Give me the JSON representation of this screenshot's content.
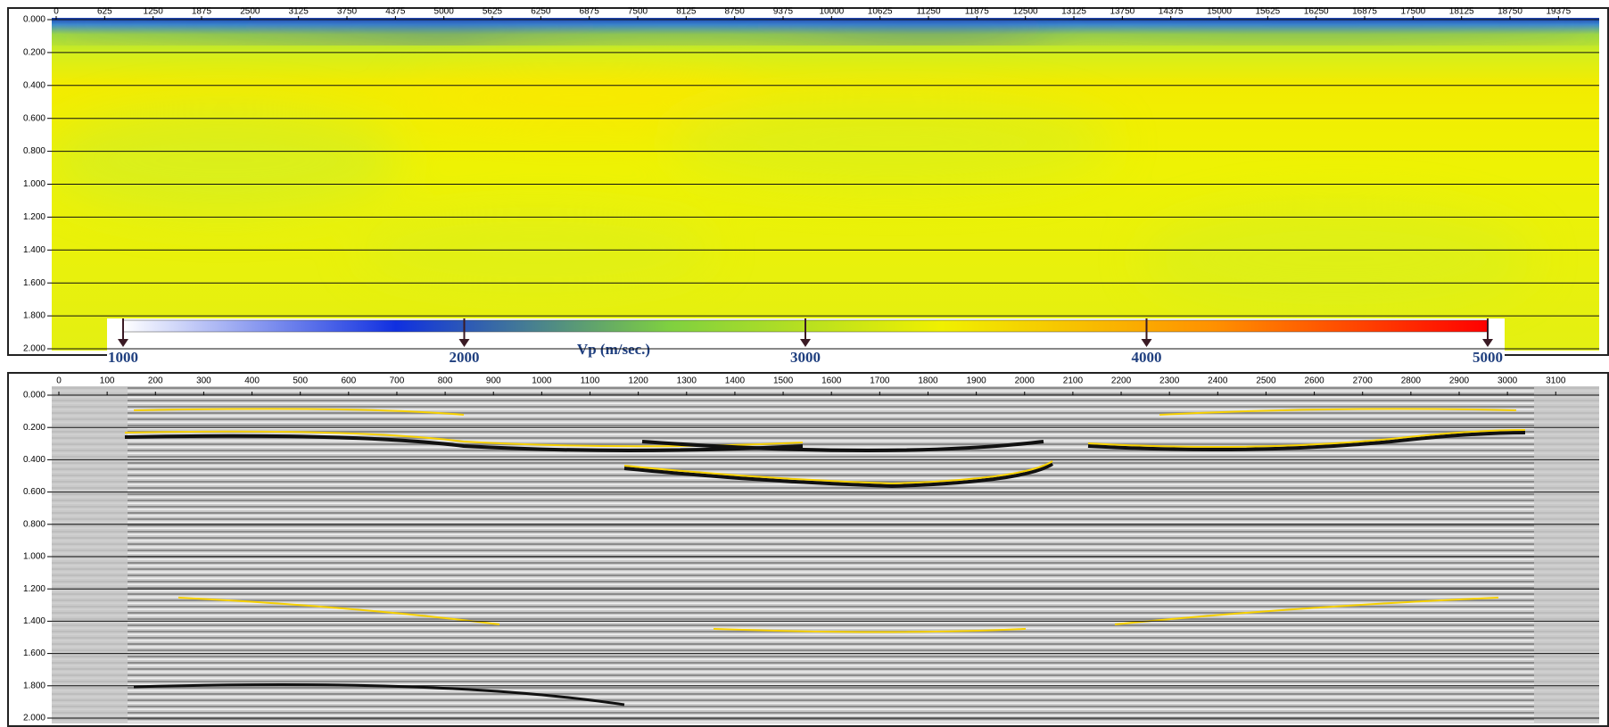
{
  "chart_data": [
    {
      "type": "heatmap",
      "xlim": [
        0,
        19900
      ],
      "xticks": [
        0,
        625,
        1250,
        1875,
        2500,
        3125,
        3750,
        4375,
        5000,
        5625,
        6250,
        6875,
        7500,
        8125,
        8750,
        9375,
        10000,
        10625,
        11250,
        11875,
        12500,
        13125,
        13750,
        14375,
        15000,
        15625,
        16250,
        16875,
        17500,
        18125,
        18750,
        19375
      ],
      "ylim": [
        0,
        2
      ],
      "yticks": [
        {
          "value": 0,
          "label": "0.000"
        },
        {
          "value": 0.2,
          "label": "0.200"
        },
        {
          "value": 0.4,
          "label": "0.400"
        },
        {
          "value": 0.6,
          "label": "0.600"
        },
        {
          "value": 0.8,
          "label": "0.800"
        },
        {
          "value": 1,
          "label": "1.000"
        },
        {
          "value": 1.2,
          "label": "1.200"
        },
        {
          "value": 1.4,
          "label": "1.400"
        },
        {
          "value": 1.6,
          "label": "1.600"
        },
        {
          "value": 1.8,
          "label": "1.800"
        },
        {
          "value": 2,
          "label": "2.000"
        }
      ],
      "grid": true,
      "colorbar": {
        "label": "Vp (m/sec.)",
        "lim": [
          1000,
          5000
        ],
        "ticks": [
          1000,
          2000,
          3000,
          4000,
          5000
        ],
        "colors": [
          "#ffffff",
          "#1030e0",
          "#7fd040",
          "#f0f000",
          "#ff9000",
          "#ff0000"
        ]
      }
    },
    {
      "type": "seismic",
      "xlim": [
        0,
        3190
      ],
      "xticks": [
        0,
        100,
        200,
        300,
        400,
        500,
        600,
        700,
        800,
        900,
        1000,
        1100,
        1200,
        1300,
        1400,
        1500,
        1600,
        1700,
        1800,
        1900,
        2000,
        2100,
        2200,
        2300,
        2400,
        2500,
        2600,
        2700,
        2800,
        2900,
        3000,
        3100
      ],
      "ylim": [
        0,
        2
      ],
      "yticks": [
        {
          "value": 0,
          "label": "0.000"
        },
        {
          "value": 0.2,
          "label": "0.200"
        },
        {
          "value": 0.4,
          "label": "0.400"
        },
        {
          "value": 0.6,
          "label": "0.600"
        },
        {
          "value": 0.8,
          "label": "0.800"
        },
        {
          "value": 1,
          "label": "1.000"
        },
        {
          "value": 1.2,
          "label": "1.200"
        },
        {
          "value": 1.4,
          "label": "1.400"
        },
        {
          "value": 1.6,
          "label": "1.600"
        },
        {
          "value": 1.8,
          "label": "1.800"
        },
        {
          "value": 2,
          "label": "2.000"
        }
      ],
      "grid": true
    }
  ]
}
